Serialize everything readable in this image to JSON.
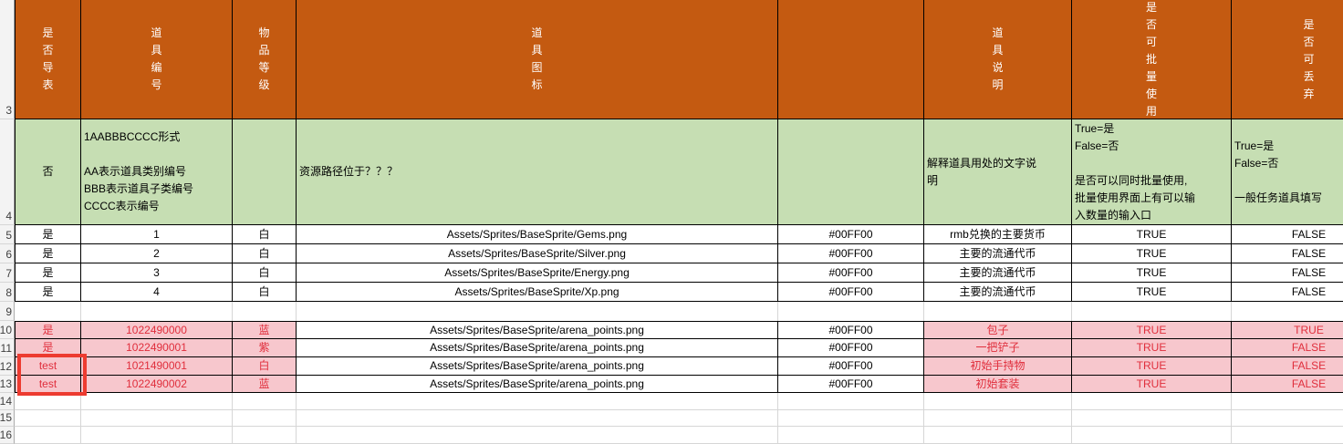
{
  "sheet": {
    "row_numbers": [
      "3",
      "4",
      "5",
      "6",
      "7",
      "8",
      "9",
      "10",
      "11",
      "12",
      "13",
      "14",
      "15",
      "16"
    ],
    "headers": {
      "A": "是否导表",
      "B": "道具编号",
      "C": "物品等级",
      "D": "道具图标",
      "E": "",
      "F": "道具说明",
      "G": "是否可批量使用",
      "H": "是否可丢弃"
    },
    "desc_row": {
      "A": "否",
      "B": "1AABBBCCCC形式\n\nAA表示道具类别编号\nBBB表示道具子类编号\nCCCC表示编号",
      "C": "",
      "D": "资源路径位于？？？",
      "E": "",
      "F": "解释道具用处的文字说\n明",
      "G": "True=是\nFalse=否\n\n是否可以同时批量使用,\n批量使用界面上有可以输\n入数量的输入口",
      "H": "True=是\nFalse=否\n\n一般任务道具填写"
    },
    "data_rows": [
      {
        "num": "5",
        "style": "white",
        "cells": [
          "是",
          "1",
          "白",
          "Assets/Sprites/BaseSprite/Gems.png",
          "#00FF00",
          "rmb兑换的主要货币",
          "TRUE",
          "FALSE"
        ]
      },
      {
        "num": "6",
        "style": "white",
        "cells": [
          "是",
          "2",
          "白",
          "Assets/Sprites/BaseSprite/Silver.png",
          "#00FF00",
          "主要的流通代币",
          "TRUE",
          "FALSE"
        ]
      },
      {
        "num": "7",
        "style": "white",
        "cells": [
          "是",
          "3",
          "白",
          "Assets/Sprites/BaseSprite/Energy.png",
          "#00FF00",
          "主要的流通代币",
          "TRUE",
          "FALSE"
        ]
      },
      {
        "num": "8",
        "style": "white",
        "cells": [
          "是",
          "4",
          "白",
          "Assets/Sprites/BaseSprite/Xp.png",
          "#00FF00",
          "主要的流通代币",
          "TRUE",
          "FALSE"
        ]
      },
      {
        "num": "9",
        "style": "empty",
        "cells": [
          "",
          "",
          "",
          "",
          "",
          "",
          "",
          ""
        ]
      },
      {
        "num": "10",
        "style": "pink",
        "cells": [
          "是",
          "1022490000",
          "蓝",
          "Assets/Sprites/BaseSprite/arena_points.png",
          "#00FF00",
          "包子",
          "TRUE",
          "TRUE"
        ]
      },
      {
        "num": "11",
        "style": "pink",
        "cells": [
          "是",
          "1022490001",
          "紫",
          "Assets/Sprites/BaseSprite/arena_points.png",
          "#00FF00",
          "一把铲子",
          "TRUE",
          "FALSE"
        ]
      },
      {
        "num": "12",
        "style": "pink",
        "cells": [
          "test",
          "1021490001",
          "白",
          "Assets/Sprites/BaseSprite/arena_points.png",
          "#00FF00",
          "初始手持物",
          "TRUE",
          "FALSE"
        ]
      },
      {
        "num": "13",
        "style": "pink",
        "cells": [
          "test",
          "1022490002",
          "蓝",
          "Assets/Sprites/BaseSprite/arena_points.png",
          "#00FF00",
          "初始套装",
          "TRUE",
          "FALSE"
        ]
      },
      {
        "num": "14",
        "style": "empty",
        "cells": [
          "",
          "",
          "",
          "",
          "",
          "",
          "",
          ""
        ]
      },
      {
        "num": "15",
        "style": "empty",
        "cells": [
          "",
          "",
          "",
          "",
          "",
          "",
          "",
          ""
        ]
      },
      {
        "num": "16",
        "style": "empty",
        "cells": [
          "",
          "",
          "",
          "",
          "",
          "",
          "",
          ""
        ]
      }
    ]
  },
  "colors": {
    "header_bg": "#C45A11",
    "desc_bg": "#C6DEB3",
    "pink_bg": "#F7C7CD",
    "red_text": "#E02E3C",
    "selection_red": "#ED3B30",
    "grid_line": "#D6D6D6",
    "gutter_bg": "#F3F3F3",
    "gutter_border": "#ABABAB",
    "gutter_text": "#3E3E3E"
  }
}
